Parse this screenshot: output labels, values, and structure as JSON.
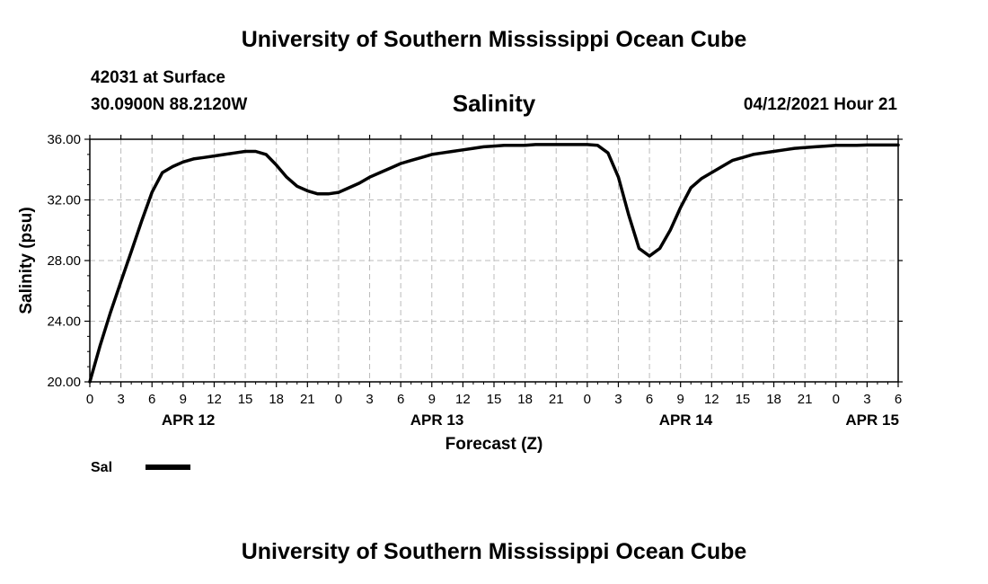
{
  "header": {
    "title_top": "University of Southern Mississippi Ocean Cube",
    "title_bottom": "University of Southern Mississippi Ocean Cube",
    "station": "42031 at Surface",
    "coords": "30.0900N  88.2120W",
    "datetime": "04/12/2021 Hour 21"
  },
  "colors": {
    "line": "#000000",
    "grid": "#bbbbbb"
  },
  "chart_data": {
    "type": "line",
    "title": "Salinity",
    "xlabel": "Forecast (Z)",
    "ylabel": "Salinity (psu)",
    "ylim": [
      20,
      36
    ],
    "xlim": [
      0,
      78
    ],
    "y_ticks": [
      20,
      24,
      28,
      32,
      36
    ],
    "y_tick_labels": [
      "20.00",
      "24.00",
      "28.00",
      "32.00",
      "36.00"
    ],
    "x_ticks": [
      0,
      3,
      6,
      9,
      12,
      15,
      18,
      21,
      24,
      27,
      30,
      33,
      36,
      39,
      42,
      45,
      48,
      51,
      54,
      57,
      60,
      63,
      66,
      69,
      72,
      75,
      78
    ],
    "x_tick_labels": [
      "0",
      "3",
      "6",
      "9",
      "12",
      "15",
      "18",
      "21",
      "0",
      "3",
      "6",
      "9",
      "12",
      "15",
      "18",
      "21",
      "0",
      "3",
      "6",
      "9",
      "12",
      "15",
      "18",
      "21",
      "0",
      "3",
      "6"
    ],
    "date_labels": [
      {
        "x": 9.5,
        "label": "APR 12"
      },
      {
        "x": 33.5,
        "label": "APR 13"
      },
      {
        "x": 57.5,
        "label": "APR 14"
      },
      {
        "x": 75.5,
        "label": "APR 15"
      }
    ],
    "legend": {
      "entries": [
        "Sal"
      ],
      "position": "bottom-left"
    },
    "grid": true,
    "series": [
      {
        "name": "Sal",
        "x": [
          0,
          1,
          2,
          3,
          4,
          5,
          6,
          7,
          8,
          9,
          10,
          11,
          12,
          13,
          14,
          15,
          16,
          17,
          18,
          19,
          20,
          21,
          22,
          23,
          24,
          25,
          26,
          27,
          28,
          29,
          30,
          31,
          32,
          33,
          34,
          35,
          36,
          37,
          38,
          39,
          40,
          41,
          42,
          43,
          44,
          45,
          46,
          47,
          48,
          49,
          50,
          51,
          52,
          53,
          54,
          55,
          56,
          57,
          58,
          59,
          60,
          61,
          62,
          63,
          64,
          65,
          66,
          67,
          68,
          69,
          70,
          71,
          72,
          73,
          74,
          75,
          76,
          77,
          78
        ],
        "values": [
          20.0,
          22.4,
          24.6,
          26.6,
          28.6,
          30.6,
          32.5,
          33.8,
          34.2,
          34.5,
          34.7,
          34.8,
          34.9,
          35.0,
          35.1,
          35.2,
          35.2,
          35.0,
          34.3,
          33.5,
          32.9,
          32.6,
          32.4,
          32.4,
          32.5,
          32.8,
          33.1,
          33.5,
          33.8,
          34.1,
          34.4,
          34.6,
          34.8,
          35.0,
          35.1,
          35.2,
          35.3,
          35.4,
          35.5,
          35.55,
          35.6,
          35.6,
          35.6,
          35.65,
          35.65,
          35.65,
          35.65,
          35.65,
          35.65,
          35.6,
          35.1,
          33.5,
          31.0,
          28.8,
          28.3,
          28.8,
          30.0,
          31.5,
          32.8,
          33.4,
          33.8,
          34.2,
          34.6,
          34.8,
          35.0,
          35.1,
          35.2,
          35.3,
          35.4,
          35.45,
          35.5,
          35.55,
          35.6,
          35.6,
          35.6,
          35.62,
          35.62,
          35.62,
          35.62
        ]
      }
    ]
  }
}
